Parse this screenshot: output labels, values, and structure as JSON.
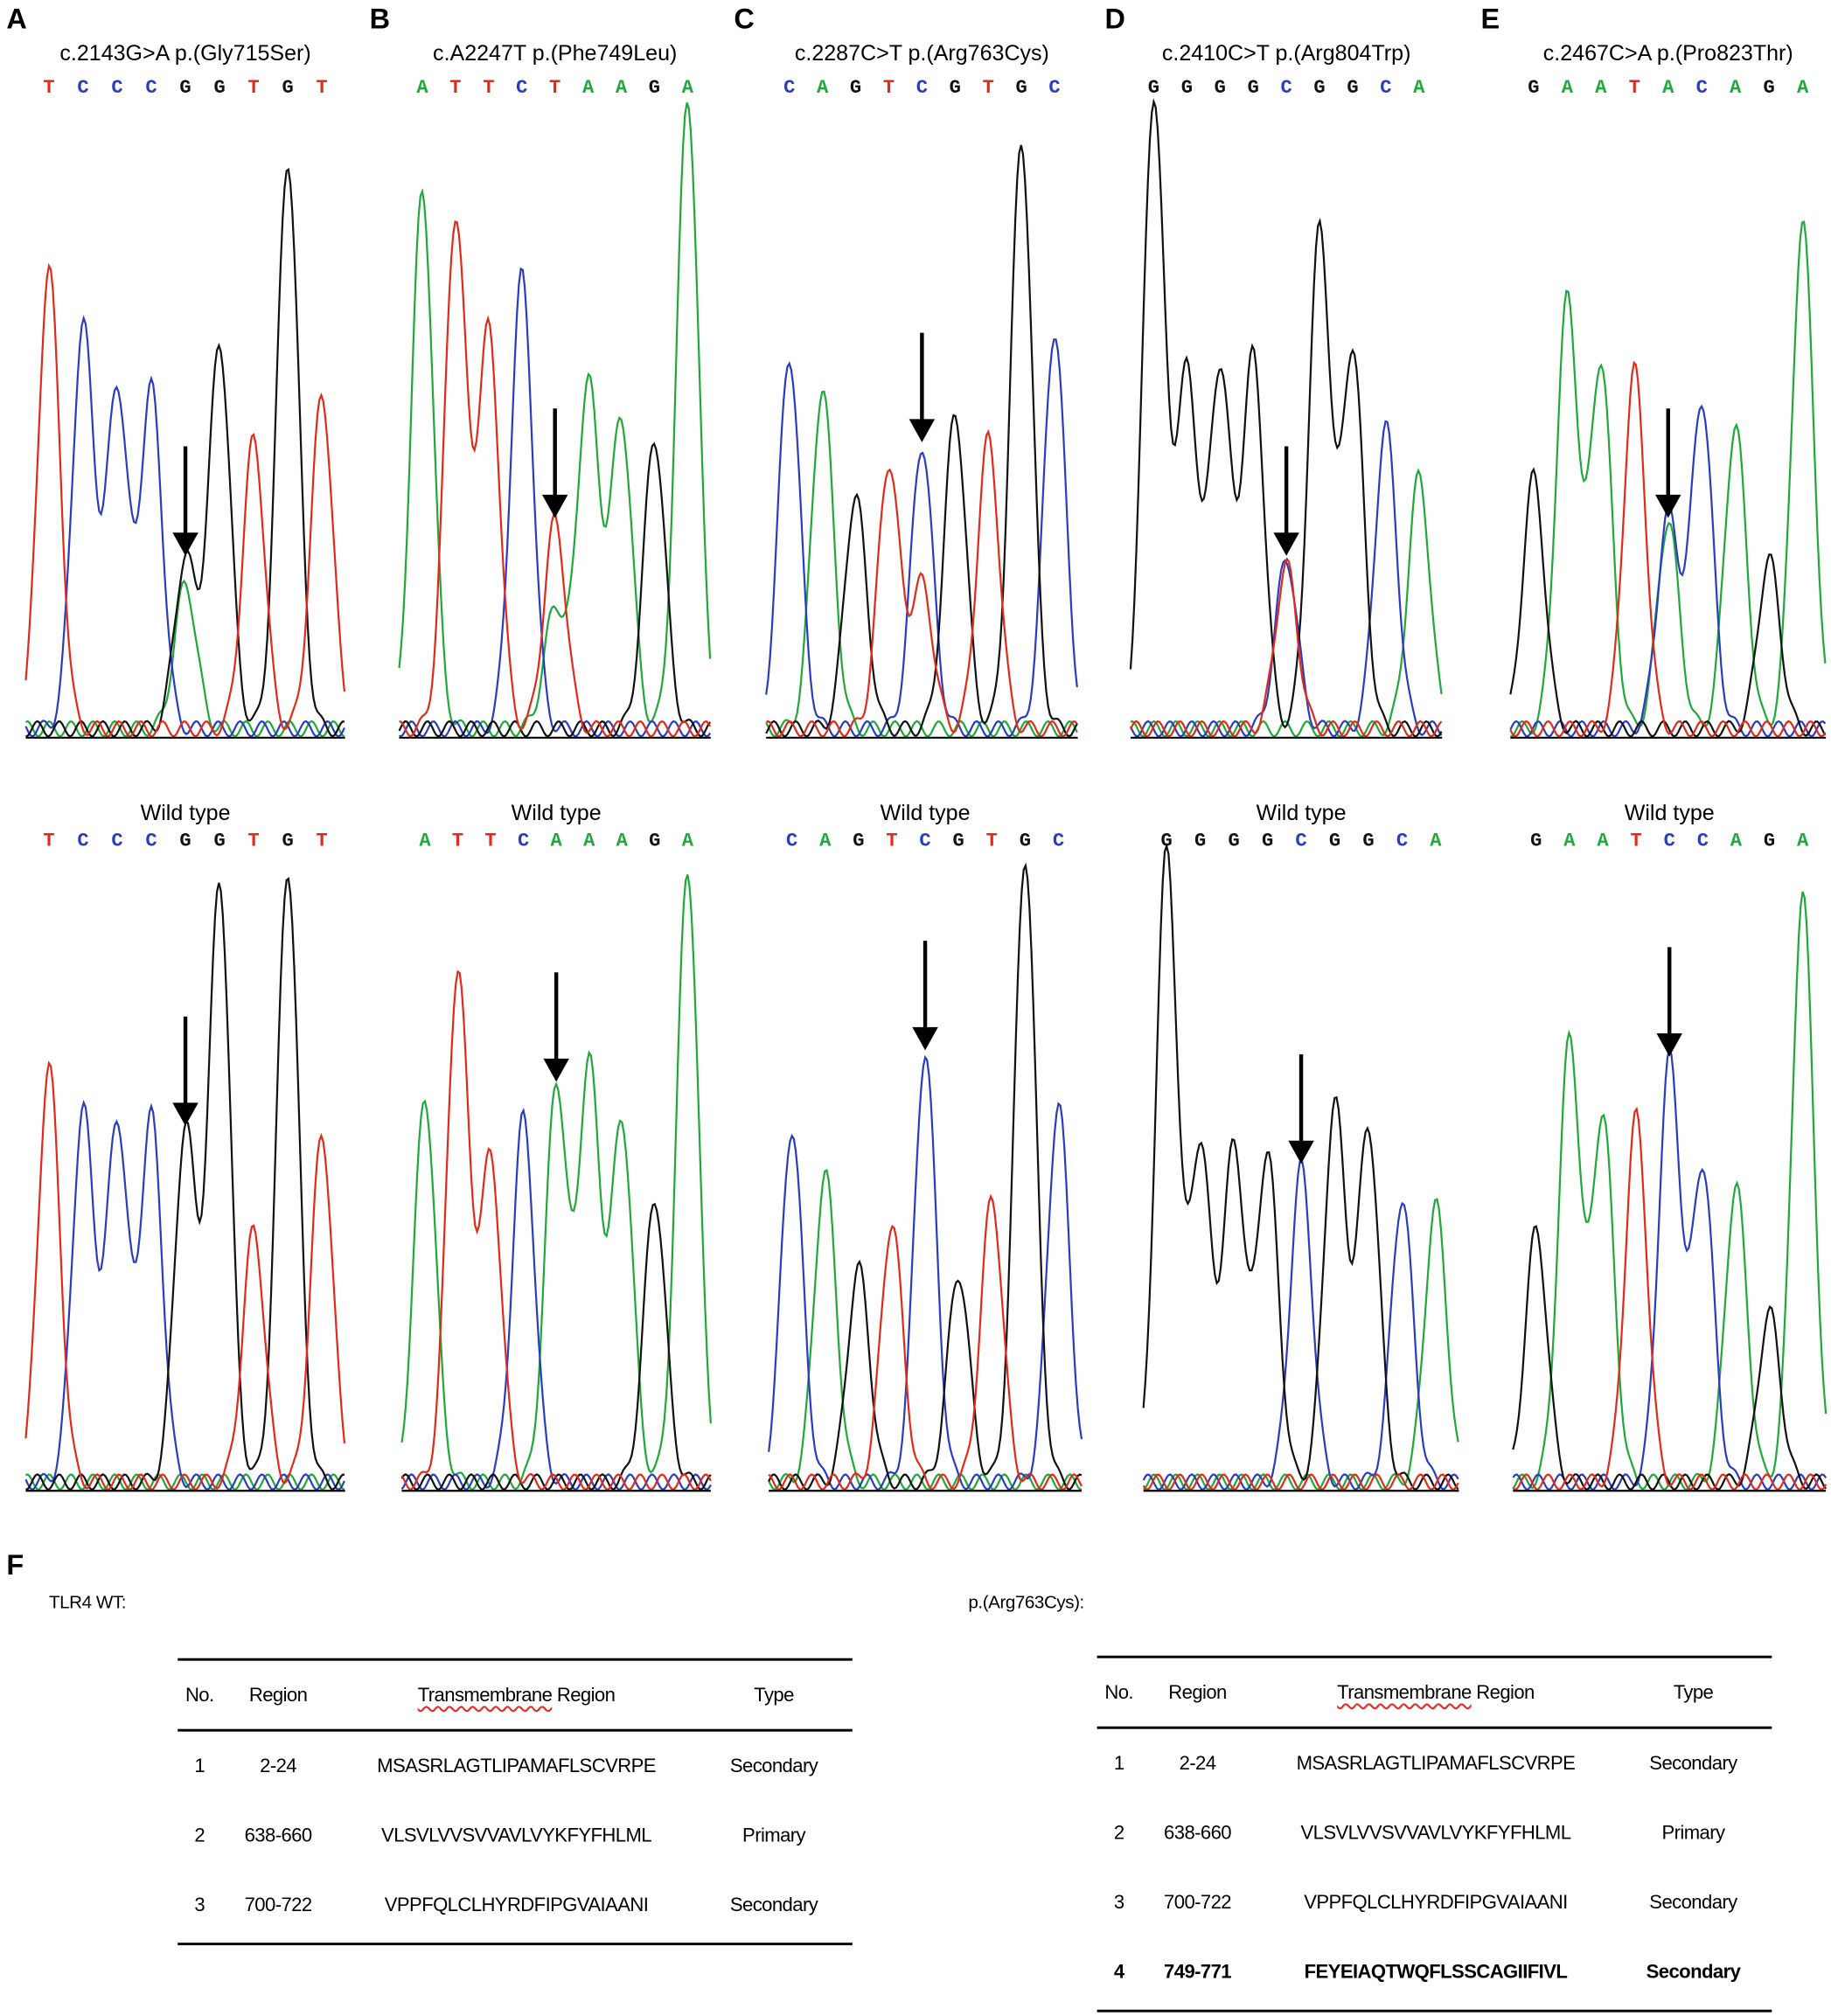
{
  "colors": {
    "A": "#20a83a",
    "C": "#2a3cc0",
    "G": "#111111",
    "T": "#e02a1a"
  },
  "panel_labels": [
    "A",
    "B",
    "C",
    "D",
    "E",
    "F"
  ],
  "wild_type_label": "Wild type",
  "chart_data": [
    {
      "panel": "A",
      "title": "c.2143G>A p.(Gly715Ser)",
      "type": "line",
      "mutant": {
        "bases": [
          "T",
          "C",
          "C",
          "C",
          "G",
          "G",
          "T",
          "G",
          "T"
        ],
        "heights": [
          0.73,
          0.64,
          0.54,
          0.54,
          0.27,
          0.61,
          0.46,
          0.9,
          0.53
        ],
        "secondary": [
          {
            "index": 4,
            "base": "A",
            "height": 0.23
          }
        ]
      },
      "wild": {
        "bases": [
          "T",
          "C",
          "C",
          "C",
          "G",
          "G",
          "T",
          "G",
          "T"
        ],
        "heights": [
          0.66,
          0.59,
          0.57,
          0.58,
          0.56,
          0.95,
          0.4,
          0.97,
          0.55
        ]
      },
      "arrow_index": 4
    },
    {
      "panel": "B",
      "title": "c.A2247T p.(Phe749Leu)",
      "type": "line",
      "mutant": {
        "bases": [
          "A",
          "T",
          "T",
          "C",
          "T",
          "A",
          "A",
          "G",
          "A"
        ],
        "heights": [
          0.85,
          0.81,
          0.63,
          0.72,
          0.33,
          0.55,
          0.49,
          0.46,
          1.0
        ],
        "secondary": [
          {
            "index": 4,
            "base": "A",
            "height": 0.19
          }
        ]
      },
      "wild": {
        "bases": [
          "A",
          "T",
          "T",
          "C",
          "A",
          "A",
          "A",
          "G",
          "A"
        ],
        "heights": [
          0.61,
          0.81,
          0.51,
          0.58,
          0.63,
          0.66,
          0.57,
          0.45,
          0.97
        ]
      },
      "arrow_index": 4
    },
    {
      "panel": "C",
      "title": "c.2287C>T p.(Arg763Cys)",
      "type": "line",
      "mutant": {
        "bases": [
          "C",
          "A",
          "G",
          "T",
          "C",
          "G",
          "T",
          "G",
          "C"
        ],
        "heights": [
          0.59,
          0.54,
          0.37,
          0.42,
          0.45,
          0.5,
          0.46,
          0.93,
          0.63
        ],
        "secondary": [
          {
            "index": 4,
            "base": "T",
            "height": 0.23
          }
        ]
      },
      "wild": {
        "bases": [
          "C",
          "A",
          "G",
          "T",
          "C",
          "G",
          "T",
          "G",
          "C"
        ],
        "heights": [
          0.56,
          0.49,
          0.34,
          0.41,
          0.68,
          0.33,
          0.45,
          0.99,
          0.6
        ]
      },
      "arrow_index": 4
    },
    {
      "panel": "D",
      "title": "c.2410C>T p.(Arg804Trp)",
      "type": "line",
      "mutant": {
        "bases": [
          "G",
          "G",
          "G",
          "G",
          "C",
          "G",
          "G",
          "C",
          "A"
        ],
        "heights": [
          1.0,
          0.56,
          0.57,
          0.59,
          0.27,
          0.79,
          0.6,
          0.48,
          0.4
        ],
        "secondary": [
          {
            "index": 4,
            "base": "T",
            "height": 0.26
          }
        ]
      },
      "wild": {
        "bases": [
          "G",
          "G",
          "G",
          "G",
          "C",
          "G",
          "G",
          "C",
          "A"
        ],
        "heights": [
          1.0,
          0.53,
          0.53,
          0.52,
          0.5,
          0.6,
          0.56,
          0.45,
          0.44
        ]
      },
      "arrow_index": 4
    },
    {
      "panel": "E",
      "title": "c.2467C>A p.(Pro823Thr)",
      "type": "line",
      "mutant": {
        "bases": [
          "G",
          "A",
          "A",
          "T",
          "A",
          "C",
          "A",
          "G",
          "A"
        ],
        "heights": [
          0.4,
          0.68,
          0.58,
          0.57,
          0.33,
          0.52,
          0.48,
          0.27,
          0.8
        ],
        "secondary": [
          {
            "index": 4,
            "base": "C",
            "height": 0.34
          }
        ]
      },
      "wild": {
        "bases": [
          "G",
          "A",
          "A",
          "T",
          "C",
          "C",
          "A",
          "G",
          "A"
        ],
        "heights": [
          0.4,
          0.7,
          0.58,
          0.58,
          0.67,
          0.5,
          0.47,
          0.27,
          0.93
        ]
      },
      "arrow_index": 4
    }
  ],
  "tables": [
    {
      "label": "TLR4 WT:",
      "columns": [
        "No.",
        "Region",
        "Transmembrane Region",
        "Type"
      ],
      "rows": [
        [
          "1",
          "2-24",
          "MSASRLAGTLIPAMAFLSCVRPE",
          "Secondary"
        ],
        [
          "2",
          "638-660",
          "VLSVLVVSVVAVLVYKFYFHLML",
          "Primary"
        ],
        [
          "3",
          "700-722",
          "VPPFQLCLHYRDFIPGVAIAANI",
          "Secondary"
        ]
      ],
      "bold_rows": []
    },
    {
      "label": "p.(Arg763Cys):",
      "columns": [
        "No.",
        "Region",
        "Transmembrane Region",
        "Type"
      ],
      "rows": [
        [
          "1",
          "2-24",
          "MSASRLAGTLIPAMAFLSCVRPE",
          "Secondary"
        ],
        [
          "2",
          "638-660",
          "VLSVLVVSVVAVLVYKFYFHLML",
          "Primary"
        ],
        [
          "3",
          "700-722",
          "VPPFQLCLHYRDFIPGVAIAANI",
          "Secondary"
        ],
        [
          "4",
          "749-771",
          "FEYEIAQTWQFLSSCAGIIFIVL",
          "Secondary"
        ]
      ],
      "bold_rows": [
        3
      ]
    }
  ]
}
